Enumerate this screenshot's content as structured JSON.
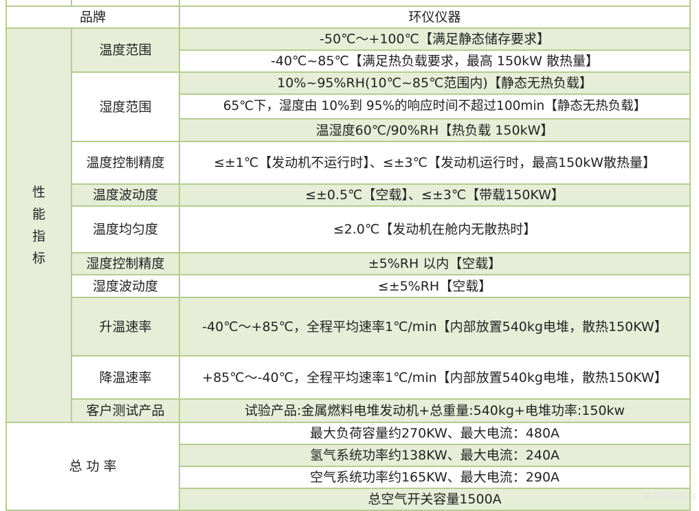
{
  "brand": {
    "label": "品牌",
    "value": "环仪仪器"
  },
  "performance": {
    "group_label": [
      "性",
      "能",
      "指",
      "标"
    ],
    "temp_range": {
      "label": "温度范围",
      "values": [
        "-50℃～+100℃【满足静态储存要求】",
        "-40℃~85℃【满足热负载要求，最高 150kW 散热量】"
      ]
    },
    "humidity_range": {
      "label": "湿度范围",
      "values": [
        "10%~95%RH(10℃~85℃范围内)【静态无热负载】",
        "65℃下，湿度由 10%到 95%的响应时间不超过100min【静态无热负载】",
        "温湿度60℃/90%RH【热负载 150kW】"
      ]
    },
    "temp_control_accuracy": {
      "label": "温度控制精度",
      "value": "≤±1℃【发动机不运行时】、≤±3℃【发动机运行时，最高150kW散热量】"
    },
    "temp_fluctuation": {
      "label": "温度波动度",
      "value": "≤±0.5℃【空载】、≤±3℃【带载150KW】"
    },
    "temp_uniformity": {
      "label": "温度均匀度",
      "value": "≤2.0℃【发动机在舱内无散热时】"
    },
    "humidity_control_accuracy": {
      "label": "湿度控制精度",
      "value": "±5%RH 以内【空载】"
    },
    "humidity_fluctuation": {
      "label": "湿度波动度",
      "value": "≤±5%RH【空载】"
    },
    "heating_rate": {
      "label": "升温速率",
      "value": "-40℃～+85℃，全程平均速率1℃/min【内部放置540kg电堆，散热150KW】"
    },
    "cooling_rate": {
      "label": "降温速率",
      "value": "+85℃～-40℃，全程平均速率1℃/min【内部放置540kg电堆，散热150KW】"
    },
    "customer_product": {
      "label": "客户测试产品",
      "value": "试验产品:金属燃料电堆发动机+总重量:540kg+电堆功率:150kw"
    }
  },
  "total_power": {
    "label": "总 功 率",
    "values": [
      "最大负荷容量约270KW、最大电流：480A",
      "氢气系统功率约138KW、最大电流：240A",
      "空气系统功率约165KW、最大电流：290A",
      "总空气开关容量1500A"
    ]
  },
  "watermark": "m.j9cuba.c",
  "colors": {
    "border": "#b5cc8e",
    "row_tint": "#e6eed8"
  }
}
